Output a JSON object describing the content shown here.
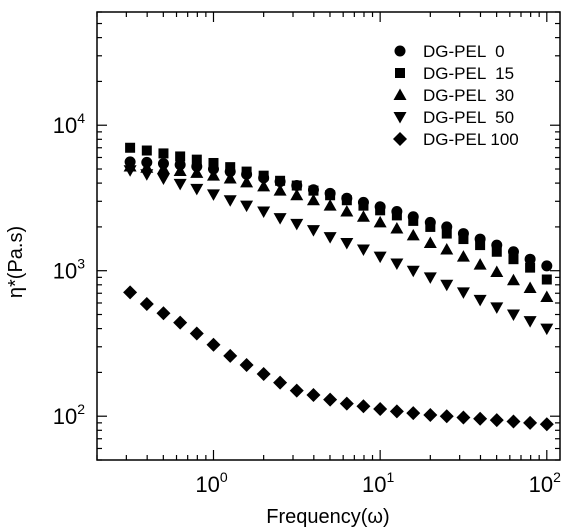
{
  "chart_data": {
    "type": "scatter",
    "xlabel": "Frequency(ω)",
    "ylabel": "η*(Pa.s)",
    "x_scale": "log",
    "y_scale": "log",
    "xlim": [
      0.2,
      120
    ],
    "ylim": [
      50,
      60000
    ],
    "x_ticks": [
      {
        "value": 1,
        "base": "10",
        "exp": "0"
      },
      {
        "value": 10,
        "base": "10",
        "exp": "1"
      },
      {
        "value": 100,
        "base": "10",
        "exp": "2"
      }
    ],
    "y_ticks": [
      {
        "value": 100,
        "base": "10",
        "exp": "2"
      },
      {
        "value": 1000,
        "base": "10",
        "exp": "3"
      },
      {
        "value": 10000,
        "base": "10",
        "exp": "4"
      }
    ],
    "grid": false,
    "legend_position": "top-right",
    "x": [
      0.316,
      0.398,
      0.501,
      0.631,
      0.794,
      1.0,
      1.26,
      1.58,
      2.0,
      2.51,
      3.16,
      3.98,
      5.01,
      6.31,
      7.94,
      10.0,
      12.6,
      15.8,
      20.0,
      25.1,
      31.6,
      39.8,
      50.1,
      63.1,
      79.4,
      100.0
    ],
    "series": [
      {
        "name": "DG-PEL  0",
        "marker": "circle",
        "values": [
          5600,
          5550,
          5450,
          5350,
          5200,
          5000,
          4800,
          4600,
          4350,
          4100,
          3850,
          3600,
          3400,
          3150,
          2950,
          2750,
          2550,
          2350,
          2150,
          2000,
          1800,
          1650,
          1500,
          1350,
          1200,
          1080
        ]
      },
      {
        "name": "DG-PEL  15",
        "marker": "square",
        "values": [
          7000,
          6700,
          6400,
          6100,
          5800,
          5500,
          5150,
          4800,
          4500,
          4150,
          3850,
          3550,
          3300,
          3050,
          2800,
          2600,
          2400,
          2200,
          2000,
          1800,
          1650,
          1500,
          1350,
          1200,
          1050,
          870
        ]
      },
      {
        "name": "DG-PEL  30",
        "marker": "triangle-up",
        "values": [
          5200,
          5100,
          5000,
          4850,
          4700,
          4500,
          4300,
          4050,
          3800,
          3550,
          3300,
          3050,
          2800,
          2550,
          2350,
          2150,
          1950,
          1750,
          1550,
          1400,
          1250,
          1100,
          980,
          860,
          760,
          660
        ]
      },
      {
        "name": "DG-PEL  50",
        "marker": "triangle-down",
        "values": [
          4900,
          4600,
          4300,
          3950,
          3650,
          3350,
          3050,
          2800,
          2550,
          2300,
          2100,
          1900,
          1700,
          1550,
          1400,
          1250,
          1120,
          1000,
          900,
          800,
          710,
          630,
          560,
          500,
          450,
          400
        ]
      },
      {
        "name": "DG-PEL 100",
        "marker": "diamond",
        "values": [
          710,
          590,
          510,
          440,
          370,
          310,
          260,
          225,
          195,
          170,
          150,
          140,
          130,
          122,
          117,
          112,
          108,
          105,
          102,
          100,
          98,
          96,
          94,
          92,
          90,
          88
        ]
      }
    ]
  }
}
